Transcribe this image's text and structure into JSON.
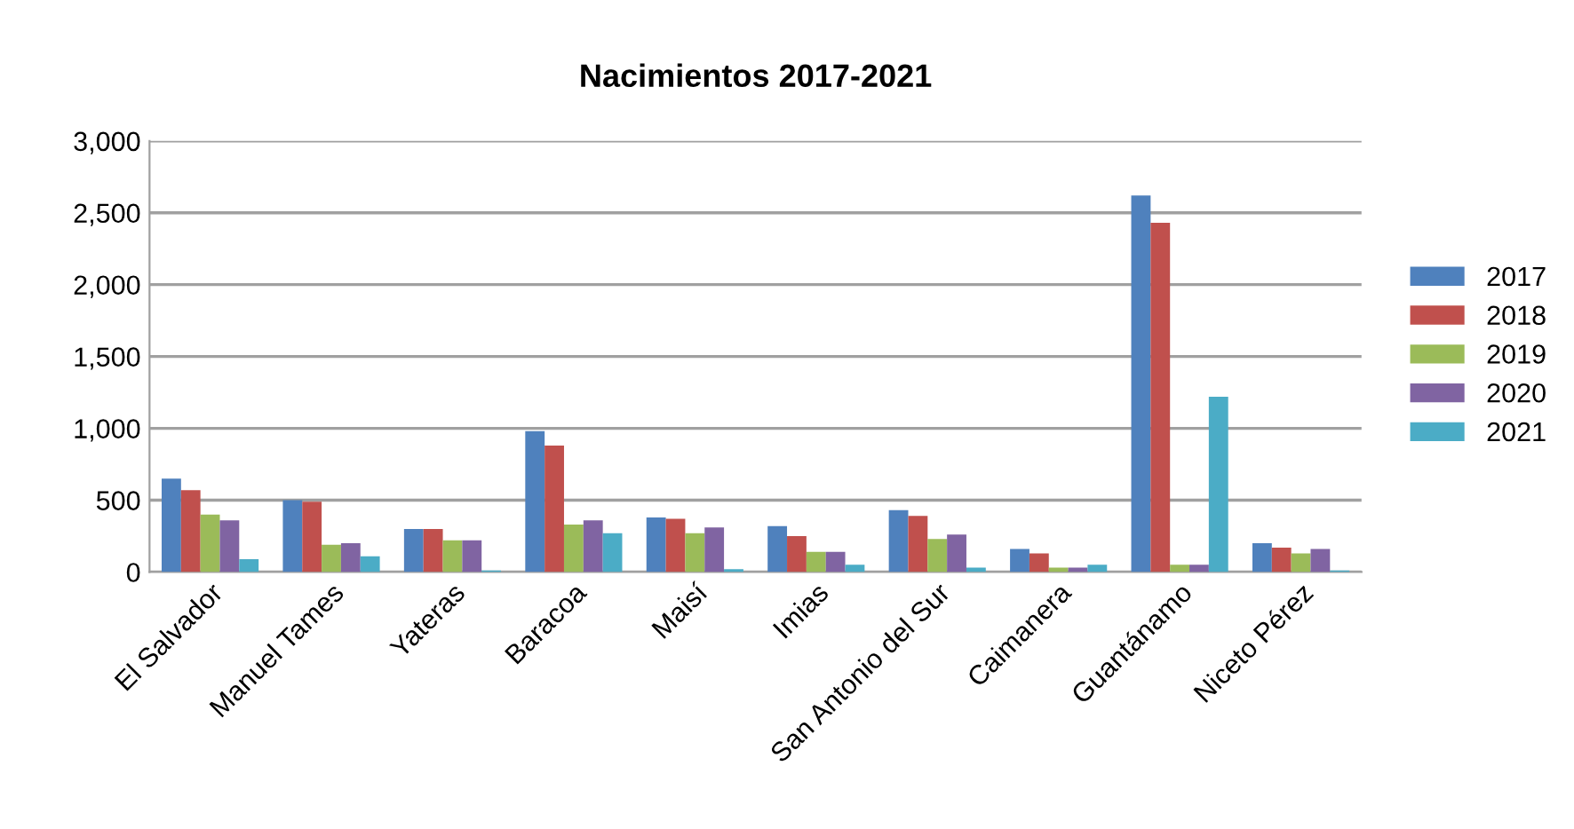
{
  "chart_data": {
    "type": "bar",
    "title": "Nacimientos 2017-2021",
    "categories": [
      "El Salvador",
      "Manuel Tames",
      "Yateras",
      "Baracoa",
      "Maisí",
      "Imias",
      "San Antonio del Sur",
      "Caimanera",
      "Guantánamo",
      "Niceto Pérez"
    ],
    "series": [
      {
        "name": "2017",
        "color": "#4f81bd",
        "values": [
          650,
          500,
          300,
          980,
          380,
          320,
          430,
          160,
          2620,
          200
        ]
      },
      {
        "name": "2018",
        "color": "#c0504d",
        "values": [
          570,
          490,
          300,
          880,
          370,
          250,
          390,
          130,
          2430,
          170
        ]
      },
      {
        "name": "2019",
        "color": "#9bbb59",
        "values": [
          400,
          190,
          220,
          330,
          270,
          140,
          230,
          30,
          50,
          130
        ]
      },
      {
        "name": "2020",
        "color": "#8064a2",
        "values": [
          360,
          200,
          220,
          360,
          310,
          140,
          260,
          30,
          50,
          160
        ]
      },
      {
        "name": "2021",
        "color": "#4bacc6",
        "values": [
          90,
          110,
          10,
          270,
          20,
          50,
          30,
          50,
          1220,
          10
        ]
      }
    ],
    "ylim": [
      0,
      3000
    ],
    "yticks": [
      {
        "value": 0,
        "label": "0"
      },
      {
        "value": 500,
        "label": "500"
      },
      {
        "value": 1000,
        "label": "1,000"
      },
      {
        "value": 1500,
        "label": "1,500"
      },
      {
        "value": 2000,
        "label": "2,000"
      },
      {
        "value": 2500,
        "label": "2,500"
      },
      {
        "value": 3000,
        "label": "3,000"
      }
    ],
    "grid": "y",
    "legend": "right"
  }
}
